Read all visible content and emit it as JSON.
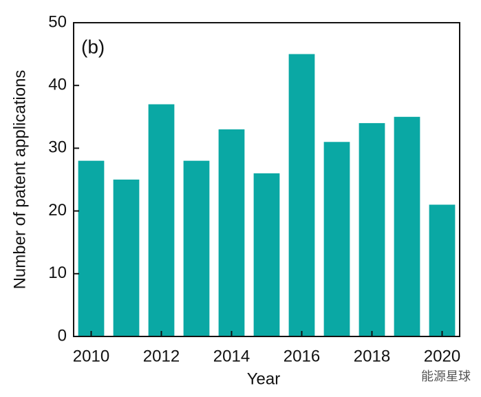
{
  "chart_data": {
    "type": "bar",
    "annotation": "(b)",
    "x_label": "Year",
    "y_label": "Number of  patent applications",
    "x": [
      2010,
      2011,
      2012,
      2013,
      2014,
      2015,
      2016,
      2017,
      2018,
      2019,
      2020
    ],
    "values": [
      28,
      25,
      37,
      28,
      33,
      26,
      45,
      31,
      34,
      35,
      21
    ],
    "color": "#0aa8a4",
    "xlim": [
      2009.5,
      2020.5
    ],
    "xticks": [
      2010,
      2012,
      2014,
      2016,
      2018,
      2020
    ],
    "ylim": [
      0,
      50
    ],
    "yticks": [
      0,
      10,
      20,
      30,
      40,
      50
    ],
    "watermark": "能源星球"
  }
}
